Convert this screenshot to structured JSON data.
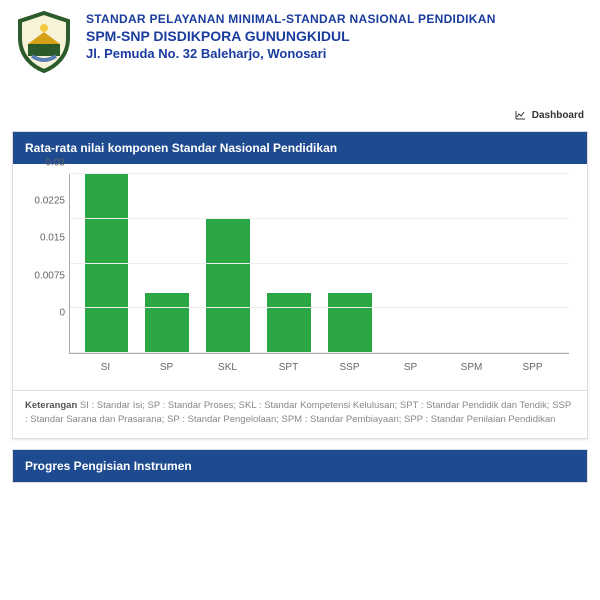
{
  "header": {
    "line1": "STANDAR PELAYANAN MINIMAL-STANDAR NASIONAL PENDIDIKAN",
    "line2": "SPM-SNP DISDIKPORA GUNUNGKIDUL",
    "line3": "Jl. Pemuda No. 32 Baleharjo, Wonosari"
  },
  "dashboard_label": "Dashboard",
  "chart": {
    "title": "Rata-rata nilai komponen Standar Nasional Pendidikan",
    "type": "bar",
    "categories": [
      "SI",
      "SP",
      "SKL",
      "SPT",
      "SSP",
      "SP",
      "SPM",
      "SPP"
    ],
    "values": [
      0.03,
      0.01,
      0.0225,
      0.01,
      0.01,
      0,
      0,
      0
    ],
    "ymax": 0.03,
    "yticks": [
      0,
      0.0075,
      0.015,
      0.0225,
      0.03
    ],
    "bar_color": "#2aa744",
    "grid_color": "#eeeeee",
    "axis_color": "#aaaaaa",
    "label_color": "#666666",
    "label_fontsize": 10
  },
  "legend": {
    "heading": "Keterangan",
    "text": "SI : Standar Isi; SP : Standar Proses; SKL : Standar Kompetensi Kelulusan; SPT : Standar Pendidik dan Tendik; SSP : Standar Sarana dan Prasarana; SP : Standar Pengelolaan; SPM : Standar Pembiayaan; SPP : Standar Penilaian Pendidikan"
  },
  "panel2_title": "Progres Pengisian Instrumen",
  "colors": {
    "header_blue": "#1e4a8f",
    "text_blue": "#1a3c9e"
  }
}
